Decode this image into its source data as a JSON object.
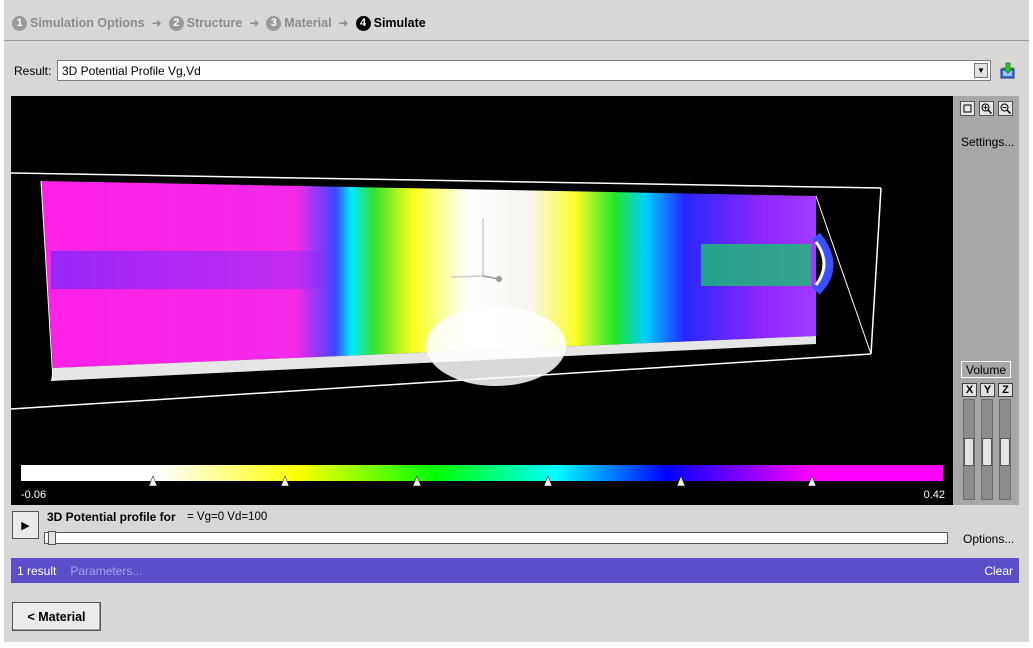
{
  "wizard": {
    "steps": [
      {
        "num": "1",
        "label": "Simulation Options"
      },
      {
        "num": "2",
        "label": "Structure"
      },
      {
        "num": "3",
        "label": "Material"
      },
      {
        "num": "4",
        "label": "Simulate"
      }
    ],
    "separator": "➜",
    "active_step": 4
  },
  "result": {
    "label": "Result:",
    "selected": "3D Potential Profile Vg,Vd"
  },
  "viewer": {
    "colorbar_min": "-0.06",
    "colorbar_max": "0.42",
    "colorbar_colors": [
      "#ffffff",
      "#ffff00",
      "#00ff00",
      "#00ffff",
      "#0000ff",
      "#ff00ff"
    ]
  },
  "side_panel": {
    "tools": [
      "reset-view-icon",
      "zoom-in-icon",
      "zoom-out-icon"
    ],
    "settings_label": "Settings...",
    "volume_label": "Volume",
    "axes": [
      "X",
      "Y",
      "Z"
    ]
  },
  "animation": {
    "title": "3D Potential profile for",
    "values": "= Vg=0 Vd=100",
    "options_label": "Options..."
  },
  "status": {
    "count": "1 result",
    "parameters": "Parameters...",
    "clear": "Clear"
  },
  "nav": {
    "back_label": "< Material"
  }
}
